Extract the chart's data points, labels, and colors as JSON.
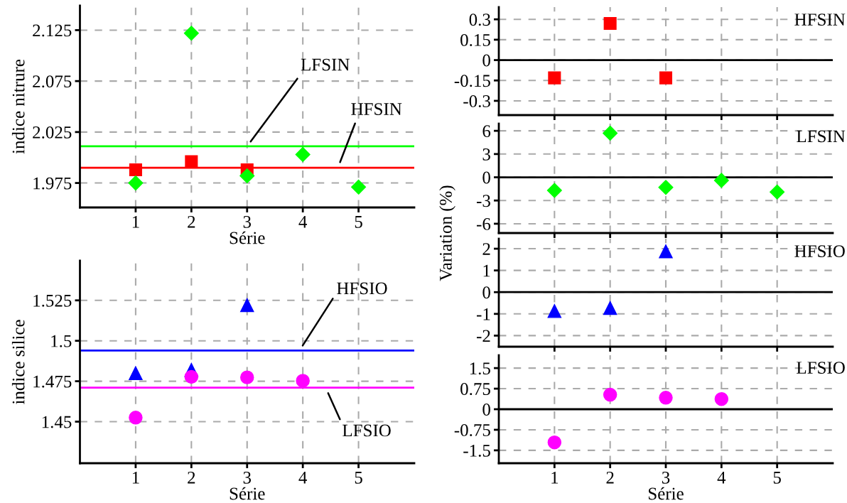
{
  "chart_data": [
    {
      "type": "scatter",
      "xlabel": "Série",
      "ylabel": "indice nitrure",
      "x": [
        1,
        2,
        3,
        4,
        5
      ],
      "xlim": [
        0,
        6
      ],
      "xticks": [
        1,
        2,
        3,
        4,
        5
      ],
      "ylim": [
        1.951,
        2.149
      ],
      "yticks": [
        1.975,
        2.025,
        2.075,
        2.125
      ],
      "grid": true,
      "series": [
        {
          "color": "#ff0000",
          "marker": "square",
          "x": [
            1,
            2,
            3
          ],
          "values": [
            1.988,
            1.996,
            1.988
          ]
        },
        {
          "color": "#00ff00",
          "marker": "diamond",
          "values": [
            1.975,
            2.122,
            1.982,
            2.003,
            1.971
          ]
        }
      ],
      "ref_lines": [
        {
          "axis": "y",
          "value": 2.011,
          "label": "LFSIN",
          "color": "#00ff00"
        },
        {
          "axis": "y",
          "value": 1.99,
          "label": "HFSIN",
          "color": "#ff0000"
        }
      ]
    },
    {
      "type": "scatter",
      "xlabel": "Série",
      "ylabel": "indice silice",
      "xlim": [
        0,
        6
      ],
      "xticks": [
        1,
        2,
        3,
        4,
        5
      ],
      "ylim": [
        1.4243,
        1.5495
      ],
      "yticks": [
        1.45,
        1.475,
        1.5,
        1.525
      ],
      "grid": true,
      "series": [
        {
          "color": "#0000ff",
          "marker": "triangle",
          "x": [
            1,
            2,
            3
          ],
          "values": [
            1.48,
            1.482,
            1.522
          ]
        },
        {
          "color": "#ff00ff",
          "marker": "circle",
          "x": [
            1,
            2,
            3,
            4
          ],
          "values": [
            1.4525,
            1.4777,
            1.4774,
            1.4753
          ]
        }
      ],
      "ref_lines": [
        {
          "axis": "y",
          "value": 1.494,
          "label": "HFSIO",
          "color": "#0000ff"
        },
        {
          "axis": "y",
          "value": 1.471,
          "label": "LFSIO",
          "color": "#ff00ff"
        }
      ]
    },
    {
      "type": "scatter",
      "x": [
        1,
        2,
        3
      ],
      "xlim": [
        0,
        6
      ],
      "xticks": [
        1,
        2,
        3,
        4,
        5
      ],
      "ylim": [
        -0.405,
        0.39
      ],
      "yticks": [
        -0.3,
        -0.15,
        0,
        0.15,
        0.3
      ],
      "grid": true,
      "tick_labels": "y",
      "annotations": [
        "HFSIN"
      ],
      "series": [
        {
          "color": "#ff0000",
          "marker": "square",
          "values": [
            -0.131,
            0.27,
            -0.131
          ]
        }
      ],
      "ref_lines": [
        {
          "axis": "y",
          "value": 0,
          "color": "#000000",
          "line_style": "solid"
        }
      ]
    },
    {
      "type": "scatter",
      "ylabel": "Variation (%)",
      "x": [
        1,
        2,
        3,
        4,
        5
      ],
      "xlim": [
        0,
        6
      ],
      "xticks": [
        1,
        2,
        3,
        4,
        5
      ],
      "ylim": [
        -7.2,
        6.93
      ],
      "yticks": [
        -6,
        -3,
        0,
        3,
        6
      ],
      "grid": true,
      "tick_labels": "y",
      "annotations": [
        "LFSIN"
      ],
      "series": [
        {
          "color": "#00ff00",
          "marker": "diamond",
          "values": [
            -1.7,
            5.7,
            -1.3,
            -0.4,
            -1.9
          ]
        }
      ],
      "ref_lines": [
        {
          "axis": "y",
          "value": 0,
          "color": "#000000",
          "line_style": "solid"
        }
      ]
    },
    {
      "type": "scatter",
      "x": [
        1,
        2,
        3
      ],
      "xlim": [
        0,
        6
      ],
      "xticks": [
        1,
        2,
        3,
        4,
        5
      ],
      "ylim": [
        -2.51,
        2.46
      ],
      "yticks": [
        -2,
        -1,
        0,
        1,
        2
      ],
      "grid": true,
      "tick_labels": "y",
      "annotations": [
        "HFSIO"
      ],
      "series": [
        {
          "color": "#0000ff",
          "marker": "triangle",
          "values": [
            -0.87,
            -0.73,
            1.88
          ]
        }
      ],
      "ref_lines": [
        {
          "axis": "y",
          "value": 0,
          "color": "#000000",
          "line_style": "solid"
        }
      ]
    },
    {
      "type": "scatter",
      "xlabel": "Série",
      "x": [
        1,
        2,
        3,
        4
      ],
      "xlim": [
        0,
        6
      ],
      "xticks": [
        1,
        2,
        3,
        4,
        5
      ],
      "ylim": [
        -1.97,
        1.97
      ],
      "yticks": [
        -1.5,
        -0.75,
        0,
        0.75,
        1.5
      ],
      "grid": true,
      "annotations": [
        "LFSIO"
      ],
      "series": [
        {
          "color": "#ff00ff",
          "marker": "circle",
          "values": [
            -1.21,
            0.53,
            0.42,
            0.37
          ]
        }
      ],
      "ref_lines": [
        {
          "axis": "y",
          "value": 0,
          "color": "#000000",
          "line_style": "solid"
        }
      ]
    }
  ]
}
